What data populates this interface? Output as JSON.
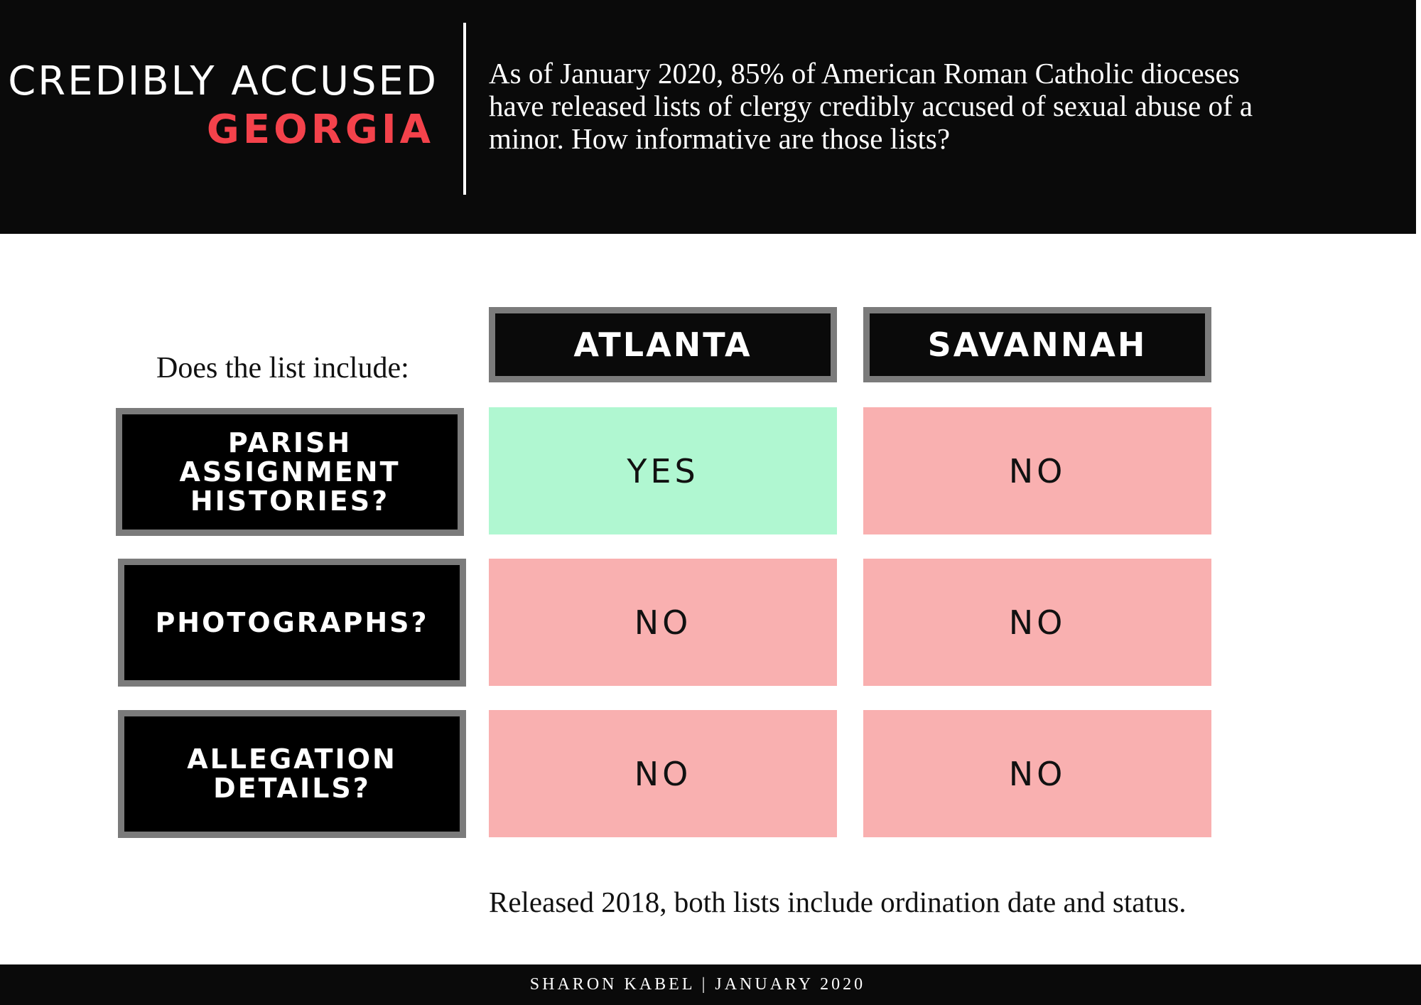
{
  "header": {
    "title_line1": "CREDIBLY ACCUSED",
    "title_line2": "GEORGIA",
    "intro": "As of January 2020, 85% of American Roman Catholic dioceses have released lists of clergy credibly accused of sexual abuse of a minor. How informative are those lists?"
  },
  "table": {
    "question": "Does the list include:",
    "columns": [
      "ATLANTA",
      "SAVANNAH"
    ],
    "rows": [
      {
        "label": "PARISH ASSIGNMENT HISTORIES?",
        "values": [
          "YES",
          "NO"
        ]
      },
      {
        "label": "PHOTOGRAPHS?",
        "values": [
          "NO",
          "NO"
        ]
      },
      {
        "label": "ALLEGATION DETAILS?",
        "values": [
          "NO",
          "NO"
        ]
      }
    ]
  },
  "note": "Released 2018, both lists include ordination date and status.",
  "footer": "SHARON KABEL | JANUARY 2020",
  "colors": {
    "header_bg": "#0a0a0a",
    "accent_red": "#f4424b",
    "yes_green": "#b0f7d1",
    "no_pink": "#f9b0b0",
    "box_border_gray": "#7b7b7b"
  }
}
